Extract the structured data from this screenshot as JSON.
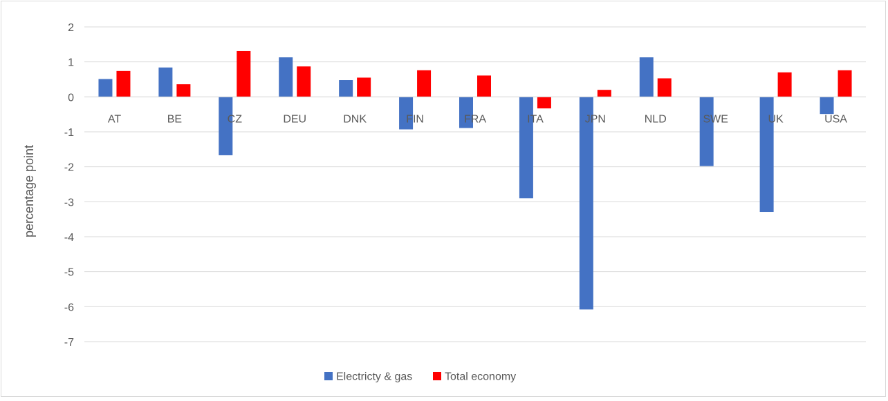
{
  "chart_data": {
    "type": "bar",
    "categories": [
      "AT",
      "BE",
      "CZ",
      "DEU",
      "DNK",
      "FIN",
      "FRA",
      "ITA",
      "JPN",
      "NLD",
      "SWE",
      "UK",
      "USA"
    ],
    "series": [
      {
        "name": "Electricty & gas",
        "color": "#4472c4",
        "values": [
          0.51,
          0.84,
          -1.67,
          1.13,
          0.48,
          -0.93,
          -0.89,
          -2.9,
          -6.08,
          1.13,
          -1.98,
          -3.29,
          -0.49
        ]
      },
      {
        "name": "Total economy",
        "color": "#ff0000",
        "values": [
          0.74,
          0.36,
          1.31,
          0.87,
          0.55,
          0.76,
          0.61,
          -0.33,
          0.2,
          0.53,
          0.0,
          0.7,
          0.76
        ]
      }
    ],
    "ylabel": "percentage point",
    "xlabel": "",
    "ylim": [
      -7,
      2
    ],
    "yticks": [
      "2",
      "1",
      "0",
      "-1",
      "-2",
      "-3",
      "-4",
      "-5",
      "-6",
      "-7"
    ],
    "grid": true,
    "legend_position": "bottom"
  }
}
